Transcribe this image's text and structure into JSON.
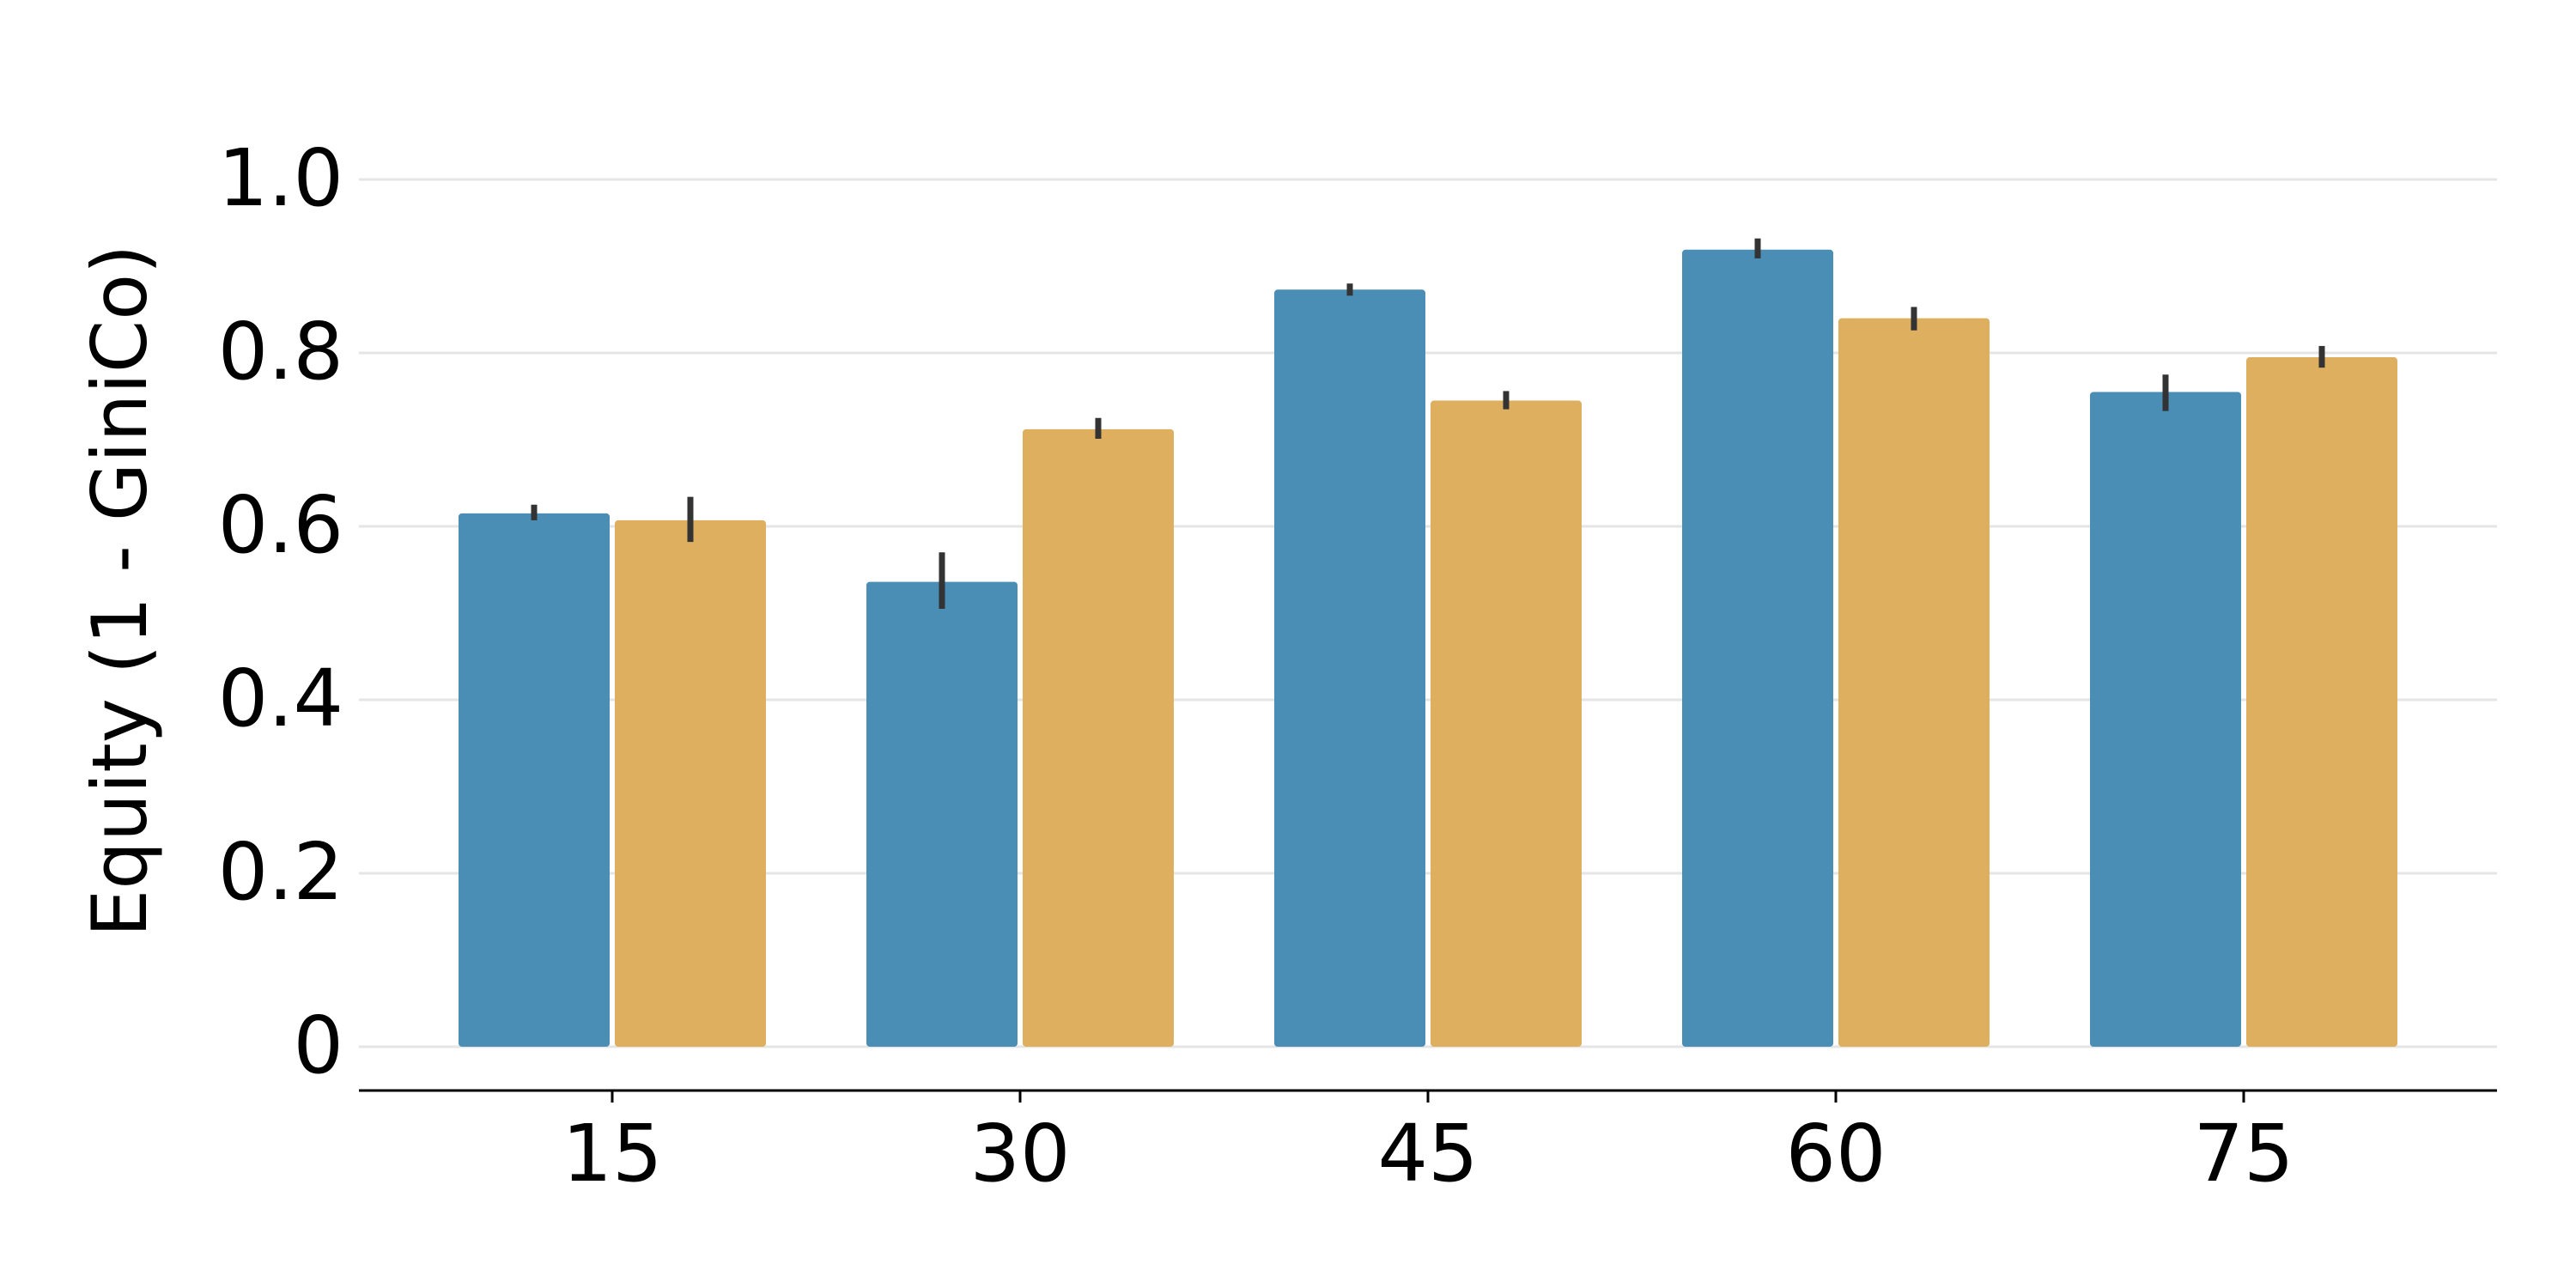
{
  "chart_data": {
    "type": "bar",
    "title": "",
    "xlabel": "",
    "ylabel": "Equity (1 - GiniCo)",
    "categories": [
      "15",
      "30",
      "45",
      "60",
      "75"
    ],
    "ylim": [
      0,
      1.05
    ],
    "yticks": [
      0,
      0.2,
      0.4,
      0.6,
      0.8,
      1.0
    ],
    "ytick_labels": [
      "0",
      "0.2",
      "0.4",
      "0.6",
      "0.8",
      "1.0"
    ],
    "grid": "horizontal",
    "legend": "none",
    "series": [
      {
        "name": "series-1",
        "color": "#4A8DB5",
        "values": [
          0.615,
          0.536,
          0.873,
          0.919,
          0.755
        ],
        "err_low": [
          0.607,
          0.505,
          0.866,
          0.909,
          0.733
        ],
        "err_high": [
          0.625,
          0.57,
          0.88,
          0.932,
          0.775
        ]
      },
      {
        "name": "series-2",
        "color": "#DDAF5E",
        "values": [
          0.607,
          0.712,
          0.745,
          0.84,
          0.795
        ],
        "err_low": [
          0.582,
          0.701,
          0.735,
          0.826,
          0.783
        ],
        "err_high": [
          0.634,
          0.725,
          0.756,
          0.853,
          0.808
        ]
      }
    ],
    "error_bar_color": "#333333",
    "grid_color": "#E5E5E5",
    "axis_color": "#000000"
  }
}
